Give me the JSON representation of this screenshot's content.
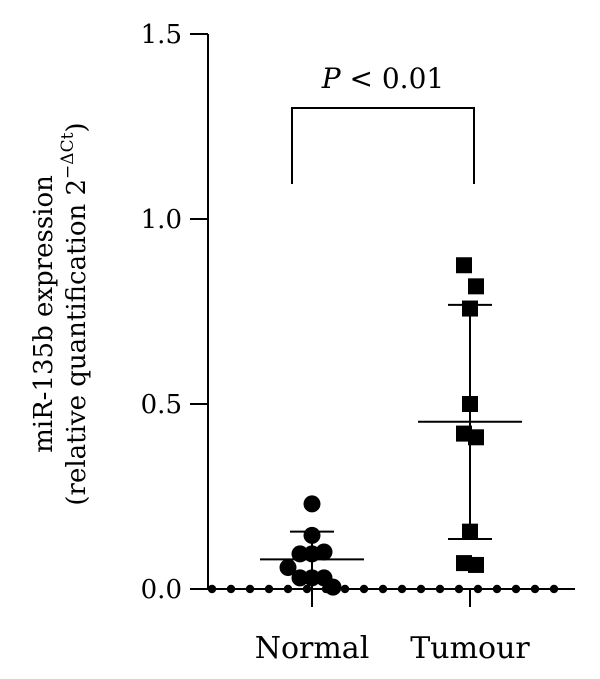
{
  "chart_data": {
    "type": "scatter",
    "ylabel_line1": "miR-135b expression",
    "ylabel_line2": "(relative quantification 2",
    "ylabel_sup": "−ΔCt",
    "ylabel_close": ")",
    "ylim": [
      0,
      1.5
    ],
    "yticks": [
      "0.0",
      "0.5",
      "1.0",
      "1.5"
    ],
    "categories": [
      "Normal",
      "Tumour"
    ],
    "series": [
      {
        "category": "Normal",
        "marker": "circle",
        "points": [
          {
            "offset": 0.0,
            "y": 0.23
          },
          {
            "offset": 0.0,
            "y": 0.145
          },
          {
            "offset": -0.24,
            "y": 0.095
          },
          {
            "offset": 0.0,
            "y": 0.095
          },
          {
            "offset": 0.24,
            "y": 0.1
          },
          {
            "offset": -0.48,
            "y": 0.058
          },
          {
            "offset": -0.24,
            "y": 0.03
          },
          {
            "offset": 0.0,
            "y": 0.03
          },
          {
            "offset": 0.24,
            "y": 0.03
          },
          {
            "offset": 0.42,
            "y": 0.005
          }
        ],
        "mean": 0.08,
        "sd_low": 0.0,
        "sd_high": 0.155
      },
      {
        "category": "Tumour",
        "marker": "square",
        "points": [
          {
            "offset": -0.12,
            "y": 0.875
          },
          {
            "offset": 0.12,
            "y": 0.818
          },
          {
            "offset": 0.0,
            "y": 0.758
          },
          {
            "offset": 0.0,
            "y": 0.5
          },
          {
            "offset": -0.12,
            "y": 0.42
          },
          {
            "offset": 0.12,
            "y": 0.41
          },
          {
            "offset": 0.0,
            "y": 0.155
          },
          {
            "offset": -0.12,
            "y": 0.07
          },
          {
            "offset": 0.12,
            "y": 0.065
          }
        ],
        "mean": 0.452,
        "sd_low": 0.135,
        "sd_high": 0.768
      }
    ],
    "annotation": {
      "p_letter": "P",
      "p_text": " < 0.01"
    },
    "baseline_dotted": true
  },
  "colors": {
    "ink": "#000000",
    "background": "#ffffff"
  }
}
